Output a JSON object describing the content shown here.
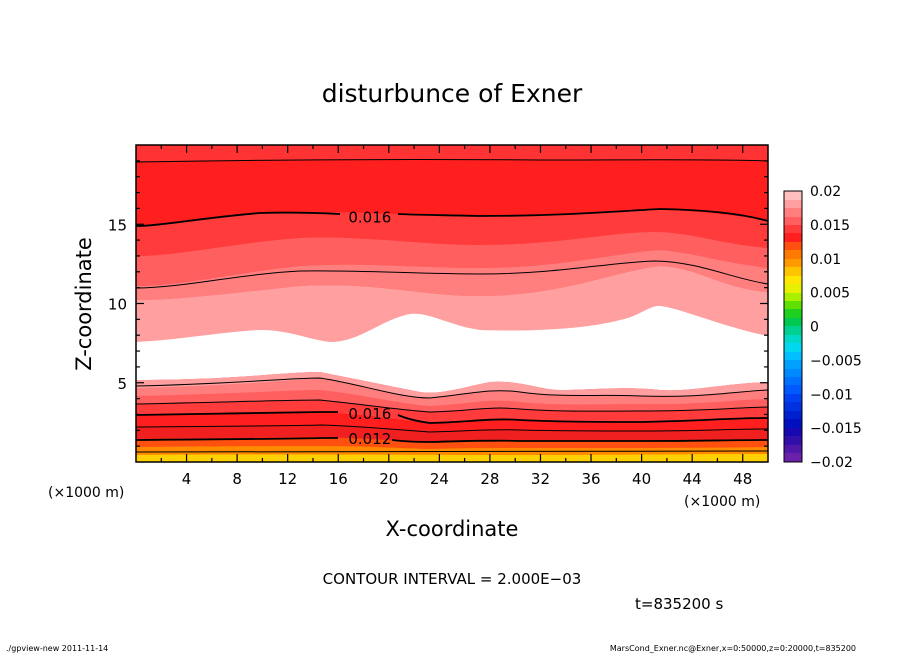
{
  "chart_data": {
    "type": "heatmap",
    "title": "disturbunce of Exner",
    "xlabel": "X-coordinate",
    "ylabel": "Z-coordinate",
    "x_unit": "(×1000 m)",
    "x_unit_right": "(×1000 m)",
    "xlim": [
      0,
      50
    ],
    "ylim": [
      0,
      20
    ],
    "x_ticks": [
      "4",
      "8",
      "12",
      "16",
      "20",
      "24",
      "28",
      "32",
      "36",
      "40",
      "44",
      "48"
    ],
    "x_tick_values": [
      4,
      8,
      12,
      16,
      20,
      24,
      28,
      32,
      36,
      40,
      44,
      48
    ],
    "y_ticks": [
      "5",
      "10",
      "15"
    ],
    "y_tick_values": [
      5,
      10,
      15
    ],
    "colorbar": {
      "labels": [
        "0.02",
        "0.015",
        "0.01",
        "0.005",
        "0",
        "−0.005",
        "−0.01",
        "−0.015",
        "−0.02"
      ],
      "levels": [
        0.02,
        0.015,
        0.01,
        0.005,
        0,
        -0.005,
        -0.01,
        -0.015,
        -0.02
      ]
    },
    "contour_labels": [
      {
        "text": "0.016",
        "x": 18.5,
        "z": 15.5
      },
      {
        "text": "0.016",
        "x": 18.5,
        "z": 3.1
      },
      {
        "text": "0.012",
        "x": 18.5,
        "z": 1.5
      }
    ],
    "contour_interval_text": "CONTOUR INTERVAL = 2.000E−03",
    "time_text": "t=835200 s",
    "colors": {
      "white_band": "#ffffff",
      "pink_light": "#ff9f9f",
      "pink": "#ff7f7f",
      "salmon": "#ff5f5f",
      "red_light": "#ff3b3b",
      "red": "#ff1f1f",
      "red_dark": "#f02020",
      "orange_red": "#ff5010",
      "orange": "#ff8a00",
      "yellow": "#ffd000"
    }
  },
  "footer": {
    "left": "./gpview-new   2011-11-14",
    "right": "MarsCond_Exner.nc@Exner,x=0:50000,z=0:20000,t=835200"
  }
}
